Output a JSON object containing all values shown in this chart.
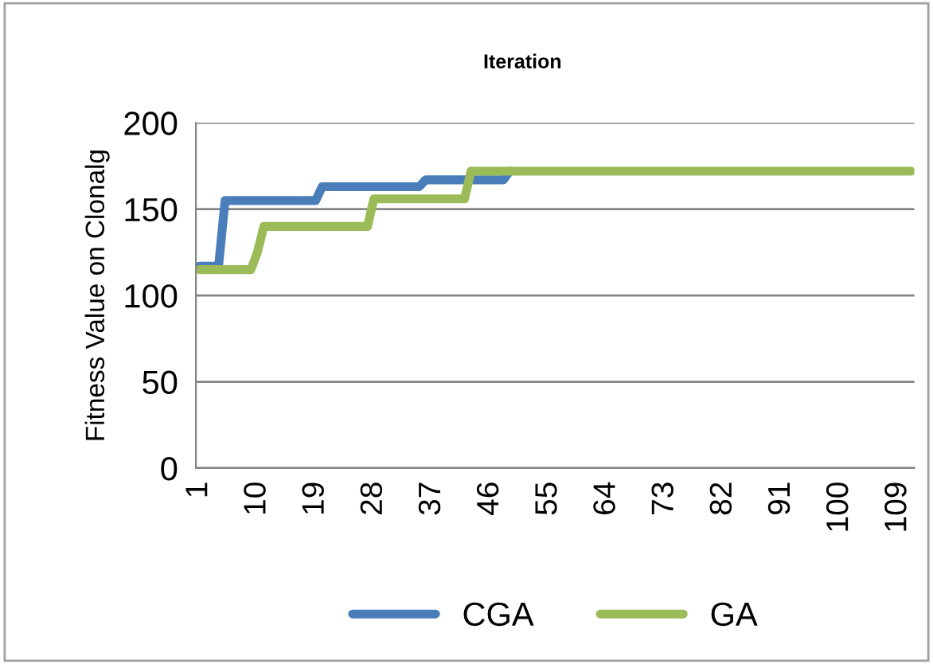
{
  "chart_data": {
    "type": "line",
    "title": "Iteration",
    "ylabel": "Fitness Value on Clonalg",
    "categories": [
      "1",
      null,
      null,
      null,
      null,
      null,
      null,
      null,
      null,
      "10",
      null,
      null,
      null,
      null,
      null,
      null,
      null,
      null,
      "19",
      null,
      null,
      null,
      null,
      null,
      null,
      null,
      null,
      "28",
      null,
      null,
      null,
      null,
      null,
      null,
      null,
      null,
      "37",
      null,
      null,
      null,
      null,
      null,
      null,
      null,
      null,
      "46",
      null,
      null,
      null,
      null,
      null,
      null,
      null,
      null,
      "55",
      null,
      null,
      null,
      null,
      null,
      null,
      null,
      null,
      "64",
      null,
      null,
      null,
      null,
      null,
      null,
      null,
      null,
      "73",
      null,
      null,
      null,
      null,
      null,
      null,
      null,
      null,
      "82",
      null,
      null,
      null,
      null,
      null,
      null,
      null,
      null,
      "91",
      null,
      null,
      null,
      null,
      null,
      null,
      null,
      null,
      "100",
      null,
      null,
      null,
      null,
      null,
      null,
      null,
      null,
      "109",
      null,
      null
    ],
    "series": [
      {
        "name": "CGA",
        "color": "#4a7ebb",
        "values": [
          117,
          117,
          117,
          117,
          155,
          155,
          155,
          155,
          155,
          155,
          155,
          155,
          155,
          155,
          155,
          155,
          155,
          155,
          155,
          163,
          163,
          163,
          163,
          163,
          163,
          163,
          163,
          163,
          163,
          163,
          163,
          163,
          163,
          163,
          163,
          167,
          167,
          167,
          167,
          167,
          167,
          167,
          167,
          167,
          167,
          167,
          167,
          167,
          172,
          null,
          null,
          null,
          null,
          null,
          null,
          null,
          null,
          null,
          null,
          null,
          null,
          null,
          null,
          null,
          null,
          null,
          null,
          null,
          null,
          null,
          null,
          null,
          null,
          null,
          null,
          null,
          null,
          null,
          null,
          null,
          null,
          null,
          null,
          null,
          null,
          null,
          null,
          null,
          null,
          null,
          null,
          null,
          null,
          null,
          null,
          null,
          null,
          null,
          null,
          null,
          null,
          null,
          null,
          null,
          null,
          null,
          null,
          null,
          null,
          null,
          null
        ]
      },
      {
        "name": "GA",
        "color": "#9bbb59",
        "values": [
          115,
          115,
          115,
          115,
          115,
          115,
          115,
          115,
          115,
          125,
          140,
          140,
          140,
          140,
          140,
          140,
          140,
          140,
          140,
          140,
          140,
          140,
          140,
          140,
          140,
          140,
          140,
          156,
          156,
          156,
          156,
          156,
          156,
          156,
          156,
          156,
          156,
          156,
          156,
          156,
          156,
          156,
          172,
          172,
          172,
          172,
          172,
          172,
          172,
          172,
          172,
          172,
          172,
          172,
          172,
          172,
          172,
          172,
          172,
          172,
          172,
          172,
          172,
          172,
          172,
          172,
          172,
          172,
          172,
          172,
          172,
          172,
          172,
          172,
          172,
          172,
          172,
          172,
          172,
          172,
          172,
          172,
          172,
          172,
          172,
          172,
          172,
          172,
          172,
          172,
          172,
          172,
          172,
          172,
          172,
          172,
          172,
          172,
          172,
          172,
          172,
          172,
          172,
          172,
          172,
          172,
          172,
          172,
          172,
          172,
          172
        ]
      }
    ],
    "ylim": [
      0,
      200
    ],
    "yticks": [
      0,
      50,
      100,
      150,
      200
    ],
    "grid": "y",
    "legend": "bottom",
    "marker": "none",
    "line_style": "solid"
  }
}
